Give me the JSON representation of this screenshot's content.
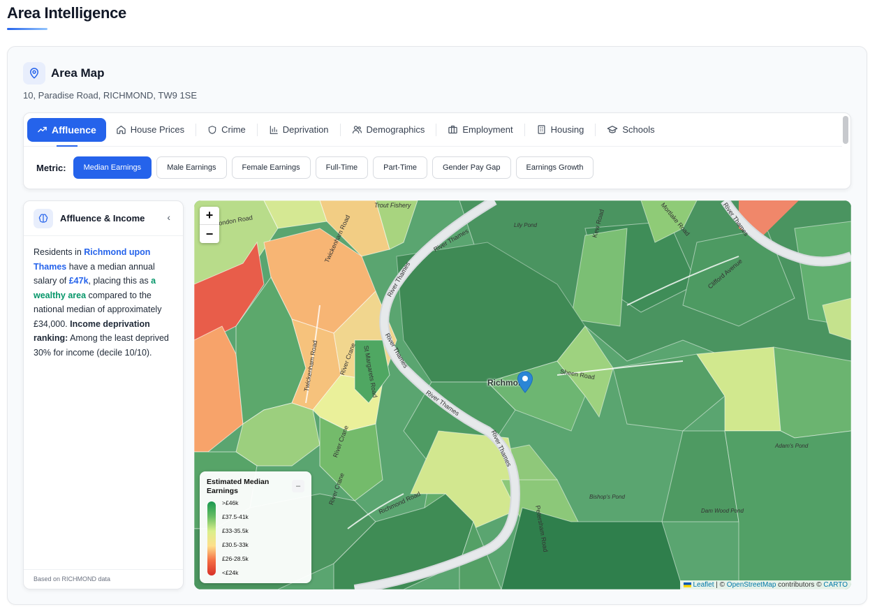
{
  "page": {
    "title": "Area Intelligence"
  },
  "card": {
    "title": "Area Map",
    "address": "10, Paradise Road, RICHMOND, TW9 1SE"
  },
  "tabs": [
    {
      "label": "Affluence",
      "icon": "trend-up-icon",
      "active": true
    },
    {
      "label": "House Prices",
      "icon": "home-icon"
    },
    {
      "label": "Crime",
      "icon": "shield-icon"
    },
    {
      "label": "Deprivation",
      "icon": "bar-chart-icon"
    },
    {
      "label": "Demographics",
      "icon": "users-icon"
    },
    {
      "label": "Employment",
      "icon": "briefcase-icon"
    },
    {
      "label": "Housing",
      "icon": "building-icon"
    },
    {
      "label": "Schools",
      "icon": "graduation-cap-icon"
    }
  ],
  "metric": {
    "label": "Metric:",
    "options": [
      "Median Earnings",
      "Male Earnings",
      "Female Earnings",
      "Full-Time",
      "Part-Time",
      "Gender Pay Gap",
      "Earnings Growth"
    ],
    "selected": "Median Earnings"
  },
  "sidebar": {
    "title": "Affluence & Income",
    "collapse_glyph": "‹",
    "text": {
      "p1": "Residents in ",
      "area": "Richmond upon Thames",
      "p2": " have a median annual salary of ",
      "salary": "£47k",
      "p3": ", placing this as ",
      "rating": "a wealthy area",
      "p4": " compared to the national median of approximately £34,000. ",
      "rank_label": "Income deprivation ranking:",
      "p5": " Among the least deprived 30% for income (decile 10/10)."
    },
    "footer": "Based on RICHMOND data"
  },
  "map": {
    "zoom_in": "+",
    "zoom_out": "−",
    "place_label": "Richmond",
    "labels": {
      "thames1": "River Thames",
      "thames2": "River Thames",
      "thames3": "River Thames",
      "thames4": "River Thames",
      "thames5": "River Thames",
      "thames6": "River Thames",
      "crane1": "River Crane",
      "crane2": "River Crane",
      "crane3": "River Crane",
      "twick1": "Twickenham Road",
      "twick2": "Twickenham Road",
      "richmond_road": "Richmond Road",
      "sheen": "Sheen Road",
      "clifford": "Clifford Avenue",
      "mortlake": "Mortlake Road",
      "kew": "Kew Road",
      "london": "London Road",
      "st_margarets": "St Margarets Road",
      "petersham": "Petersham Road",
      "lily": "Lily Pond",
      "adams": "Adam's Pond",
      "bishops": "Bishop's Pond",
      "dam": "Dam Wood Pond",
      "trout": "Trout Fishery"
    },
    "legend": {
      "title": "Estimated Median Earnings",
      "minimize": "–",
      "items": [
        ">£46k",
        "£37.5-41k",
        "£33-35.5k",
        "£30.5-33k",
        "£26-28.5k",
        "<£24k"
      ]
    },
    "attribution": {
      "leaflet": "Leaflet",
      "sep": " | © ",
      "osm": "OpenStreetMap",
      "mid": " contributors © ",
      "carto": "CARTO"
    }
  }
}
